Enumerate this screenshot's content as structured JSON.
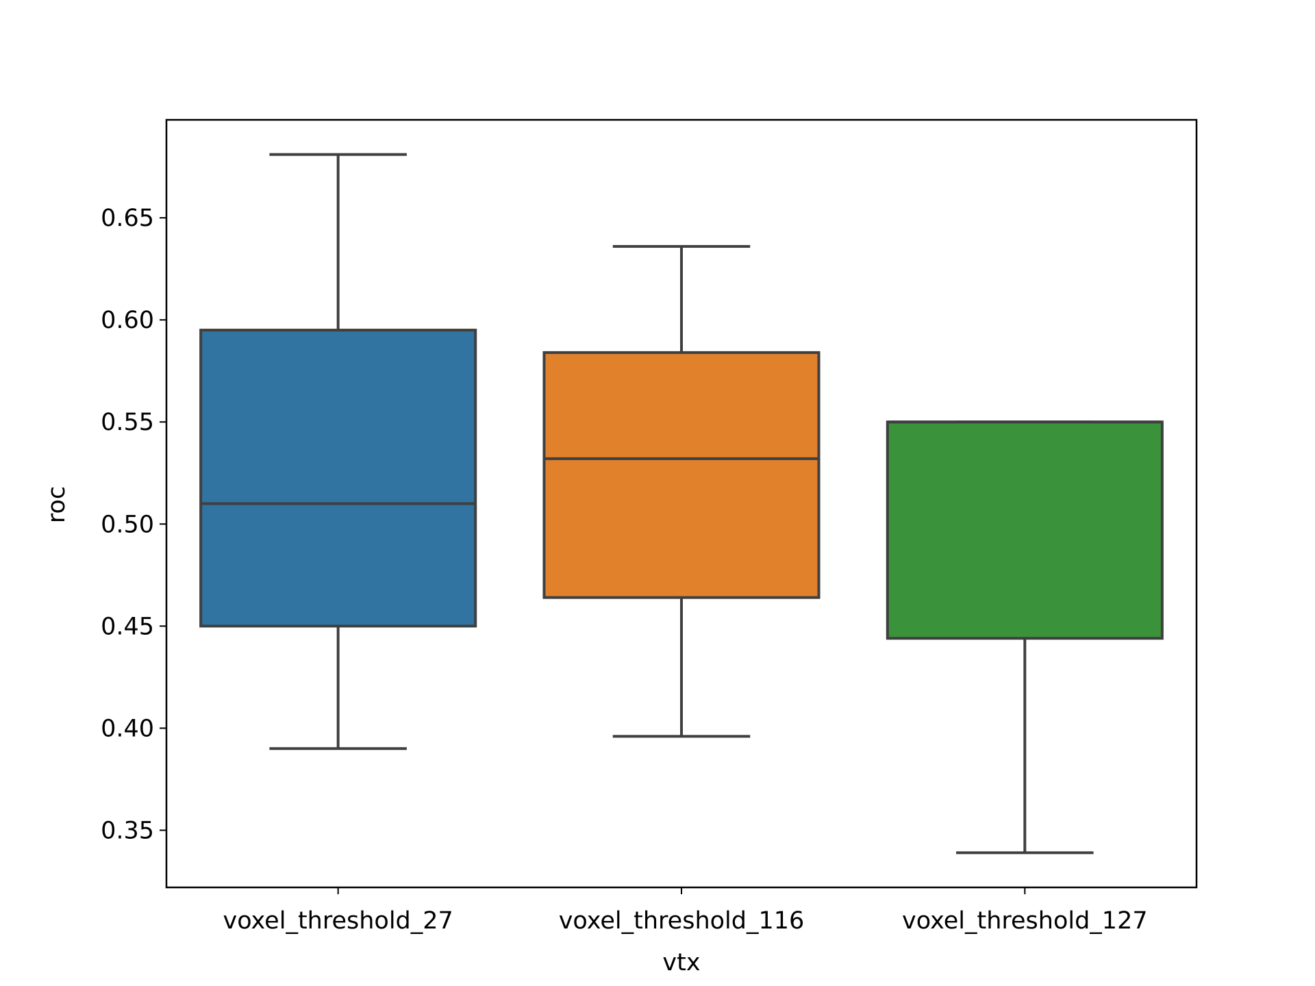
{
  "chart_data": {
    "type": "box",
    "xlabel": "vtx",
    "ylabel": "roc",
    "ylim": [
      0.322,
      0.698
    ],
    "yticks": [
      "0.35",
      "0.40",
      "0.45",
      "0.50",
      "0.55",
      "0.60",
      "0.65"
    ],
    "grid": false,
    "legend": "none",
    "categories": [
      "voxel_threshold_27",
      "voxel_threshold_116",
      "voxel_threshold_127"
    ],
    "colors": [
      "#3274a1",
      "#e1812c",
      "#3a923a"
    ],
    "edge_color": "#3f3f3f",
    "boxes": [
      {
        "whisker_low": 0.39,
        "q1": 0.45,
        "median": 0.51,
        "q3": 0.595,
        "whisker_high": 0.681
      },
      {
        "whisker_low": 0.396,
        "q1": 0.464,
        "median": 0.532,
        "q3": 0.584,
        "whisker_high": 0.636
      },
      {
        "whisker_low": 0.339,
        "q1": 0.444,
        "median": 0.55,
        "q3": 0.55,
        "whisker_high": 0.55
      }
    ]
  }
}
